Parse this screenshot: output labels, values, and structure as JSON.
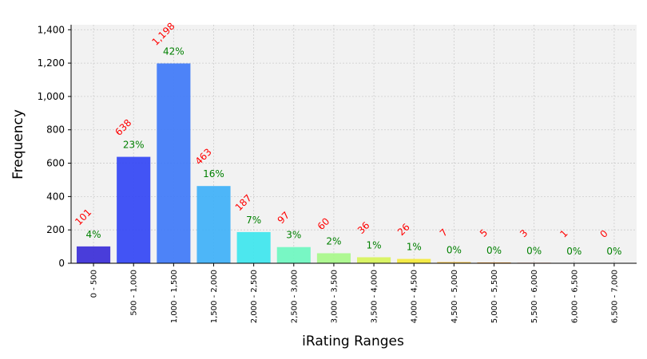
{
  "chart_data": {
    "type": "bar",
    "xlabel": "iRating Ranges",
    "ylabel": "Frequency",
    "ylim": [
      0,
      1430
    ],
    "yticks": [
      0,
      200,
      400,
      600,
      800,
      1000,
      1200,
      1400
    ],
    "ytick_labels": [
      "0",
      "200",
      "400",
      "600",
      "800",
      "1,000",
      "1,200",
      "1,400"
    ],
    "grid": true,
    "categories": [
      "0 - 500",
      "500 - 1,000",
      "1,000 - 1,500",
      "1,500 - 2,000",
      "2,000 - 2,500",
      "2,500 - 3,000",
      "3,000 - 3,500",
      "3,500 - 4,000",
      "4,000 - 4,500",
      "4,500 - 5,000",
      "5,000 - 5,500",
      "5,500 - 6,000",
      "6,000 - 6,500",
      "6,500 - 7,000"
    ],
    "values": [
      101,
      638,
      1198,
      463,
      187,
      97,
      60,
      36,
      26,
      7,
      5,
      3,
      1,
      0
    ],
    "count_labels": [
      "101",
      "638",
      "1,198",
      "463",
      "187",
      "97",
      "60",
      "36",
      "26",
      "7",
      "5",
      "3",
      "1",
      "0"
    ],
    "percent_labels": [
      "4%",
      "23%",
      "42%",
      "16%",
      "7%",
      "3%",
      "2%",
      "1%",
      "1%",
      "0%",
      "0%",
      "0%",
      "0%",
      "0%"
    ],
    "bar_colors": [
      "#3b2ed8",
      "#3347f5",
      "#3f7af8",
      "#3fb1f8",
      "#3ee6ee",
      "#6ef7c0",
      "#a8f98a",
      "#d8f45a",
      "#f4e93a",
      "#f7bf30",
      "#f59a2a",
      "#f3682a",
      "#ee3324",
      "#b81b1b"
    ],
    "count_label_color": "#ff0000",
    "percent_label_color": "#008000",
    "plot_background": "#f2f2f2",
    "grid_color": "#cccccc"
  }
}
